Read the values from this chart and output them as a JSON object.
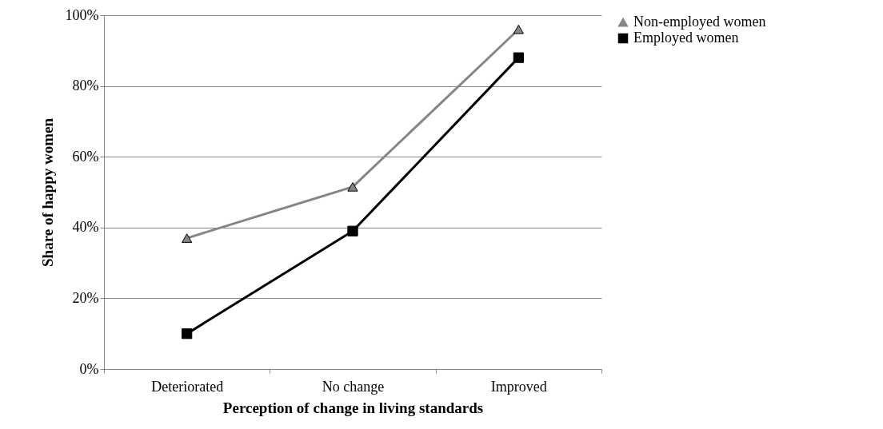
{
  "chart_data": {
    "type": "line",
    "xlabel": "Perception of change in living standards",
    "ylabel": "Share of happy women",
    "categories": [
      "Deteriorated",
      "No change",
      "Improved"
    ],
    "series": [
      {
        "name": "Non-employed women",
        "color": "#868686",
        "marker": "triangle",
        "values": [
          37,
          51.5,
          96
        ]
      },
      {
        "name": "Employed women",
        "color": "#000000",
        "marker": "square",
        "values": [
          10,
          39,
          88
        ]
      }
    ],
    "ylim": [
      0,
      100
    ],
    "yticks": [
      {
        "value": 0,
        "label": "0%"
      },
      {
        "value": 20,
        "label": "20%"
      },
      {
        "value": 40,
        "label": "40%"
      },
      {
        "value": 60,
        "label": "60%"
      },
      {
        "value": 80,
        "label": "80%"
      },
      {
        "value": 100,
        "label": "100%"
      }
    ],
    "grid": "y",
    "legend": "right",
    "line_style": "solid"
  }
}
